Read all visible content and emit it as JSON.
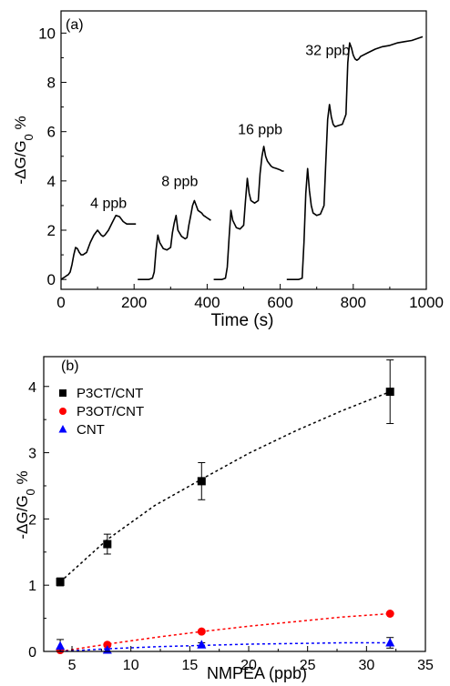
{
  "chart_data": [
    {
      "panel_label": "(a)",
      "type": "line",
      "xlabel": "Time (s)",
      "ylabel_parts": {
        "main": "-ΔG/G",
        "sub": "0",
        "suffix": " %"
      },
      "xlim": [
        0,
        1000
      ],
      "ylim": [
        -0.4,
        10.9
      ],
      "xticks": [
        0,
        200,
        400,
        600,
        800,
        1000
      ],
      "yticks": [
        0,
        2,
        4,
        6,
        8,
        10
      ],
      "grid": false,
      "annotations": [
        {
          "text": "4 ppb",
          "x": 130,
          "y": 2.9
        },
        {
          "text": "8 ppb",
          "x": 325,
          "y": 3.8
        },
        {
          "text": "16 ppb",
          "x": 545,
          "y": 5.9
        },
        {
          "text": "32 ppb",
          "x": 730,
          "y": 9.1
        }
      ],
      "series": [
        {
          "x": [
            0,
            5,
            10,
            15,
            20,
            25,
            30,
            35,
            40,
            45,
            50,
            55,
            60,
            65,
            70,
            80,
            90,
            100,
            105,
            110,
            115,
            120,
            130,
            140,
            150,
            160,
            165,
            170,
            175,
            180,
            190,
            200,
            205
          ],
          "y": [
            0,
            0.05,
            0.1,
            0.15,
            0.2,
            0.3,
            0.6,
            1.0,
            1.3,
            1.25,
            1.1,
            1.0,
            1.0,
            1.05,
            1.1,
            1.5,
            1.8,
            2.0,
            1.9,
            1.8,
            1.75,
            1.8,
            2.0,
            2.3,
            2.6,
            2.55,
            2.45,
            2.35,
            2.3,
            2.25,
            2.25,
            2.25,
            2.25
          ]
        },
        {
          "x": [
            210,
            220,
            230,
            240,
            250,
            255,
            260,
            265,
            270,
            280,
            290,
            300,
            305,
            310,
            315,
            320,
            330,
            340,
            345,
            350,
            355,
            360,
            365,
            370,
            375,
            380,
            385,
            390,
            395,
            400,
            405,
            410
          ],
          "y": [
            0,
            0,
            0,
            0,
            0.05,
            0.3,
            1.2,
            1.8,
            1.5,
            1.25,
            1.2,
            1.3,
            1.9,
            2.3,
            2.6,
            2.0,
            1.75,
            1.65,
            1.7,
            2.2,
            2.6,
            3.0,
            3.2,
            3.0,
            2.8,
            2.75,
            2.7,
            2.6,
            2.55,
            2.5,
            2.45,
            2.4
          ]
        },
        {
          "x": [
            418,
            430,
            440,
            450,
            455,
            460,
            465,
            470,
            480,
            490,
            500,
            505,
            510,
            515,
            520,
            530,
            540,
            545,
            550,
            555,
            560,
            565,
            570,
            575,
            580,
            590,
            600,
            605,
            610
          ],
          "y": [
            0,
            0,
            0,
            0.05,
            0.5,
            1.7,
            2.8,
            2.4,
            2.1,
            2.05,
            2.2,
            3.2,
            4.1,
            3.5,
            3.2,
            3.1,
            3.2,
            4.3,
            5.0,
            5.4,
            5.0,
            4.8,
            4.7,
            4.6,
            4.55,
            4.5,
            4.45,
            4.4,
            4.4
          ]
        },
        {
          "x": [
            618,
            630,
            640,
            650,
            660,
            665,
            670,
            675,
            680,
            685,
            690,
            700,
            710,
            720,
            725,
            730,
            735,
            740,
            745,
            750,
            760,
            770,
            780,
            785,
            790,
            795,
            800,
            805,
            810,
            815,
            820,
            840,
            860,
            880,
            900,
            920,
            940,
            960,
            980,
            990
          ],
          "y": [
            0,
            0,
            0,
            0,
            0.05,
            1.5,
            3.5,
            4.5,
            3.6,
            3.0,
            2.7,
            2.6,
            2.65,
            3.0,
            4.8,
            6.5,
            7.1,
            6.6,
            6.3,
            6.2,
            6.25,
            6.3,
            6.7,
            8.8,
            9.6,
            9.4,
            9.1,
            8.95,
            8.9,
            8.95,
            9.05,
            9.2,
            9.35,
            9.45,
            9.5,
            9.6,
            9.65,
            9.7,
            9.8,
            9.85
          ]
        }
      ]
    },
    {
      "panel_label": "(b)",
      "type": "scatter",
      "xlabel": "NMPEA (ppb)",
      "ylabel_parts": {
        "main": "-ΔG/G",
        "sub": "0",
        "suffix": " %"
      },
      "xlim": [
        2.6,
        35
      ],
      "ylim": [
        0,
        4.45
      ],
      "xticks": [
        5,
        10,
        15,
        20,
        25,
        30,
        35
      ],
      "yticks": [
        0,
        1,
        2,
        3,
        4
      ],
      "grid": false,
      "legend_position": "top-left",
      "series": [
        {
          "name": "P3CT/CNT",
          "color": "#000000",
          "marker": "square",
          "x": [
            4,
            8,
            16,
            32
          ],
          "y": [
            1.05,
            1.62,
            2.57,
            3.92
          ],
          "err": [
            0.06,
            0.15,
            0.28,
            0.48
          ],
          "fit": [
            [
              4,
              1.05
            ],
            [
              8,
              1.69
            ],
            [
              12,
              2.2
            ],
            [
              16,
              2.6
            ],
            [
              20,
              2.99
            ],
            [
              24,
              3.33
            ],
            [
              28,
              3.64
            ],
            [
              32,
              3.92
            ]
          ]
        },
        {
          "name": "P3OT/CNT",
          "color": "#ff0000",
          "marker": "circle",
          "x": [
            4,
            8,
            16,
            32
          ],
          "y": [
            0.02,
            0.1,
            0.3,
            0.57
          ],
          "err": [
            0,
            0,
            0,
            0
          ],
          "fit": [
            [
              4,
              0.0
            ],
            [
              8,
              0.11
            ],
            [
              12,
              0.21
            ],
            [
              16,
              0.3
            ],
            [
              20,
              0.38
            ],
            [
              24,
              0.45
            ],
            [
              28,
              0.52
            ],
            [
              32,
              0.57
            ]
          ]
        },
        {
          "name": "CNT",
          "color": "#0000ff",
          "marker": "triangle",
          "x": [
            4,
            8,
            16,
            32
          ],
          "y": [
            0.08,
            0.02,
            0.1,
            0.13
          ],
          "err": [
            0.1,
            0,
            0.03,
            0.08
          ],
          "fit": [
            [
              4,
              0.0
            ],
            [
              8,
              0.04
            ],
            [
              12,
              0.07
            ],
            [
              16,
              0.09
            ],
            [
              20,
              0.11
            ],
            [
              24,
              0.12
            ],
            [
              28,
              0.13
            ],
            [
              32,
              0.13
            ]
          ]
        }
      ]
    }
  ]
}
